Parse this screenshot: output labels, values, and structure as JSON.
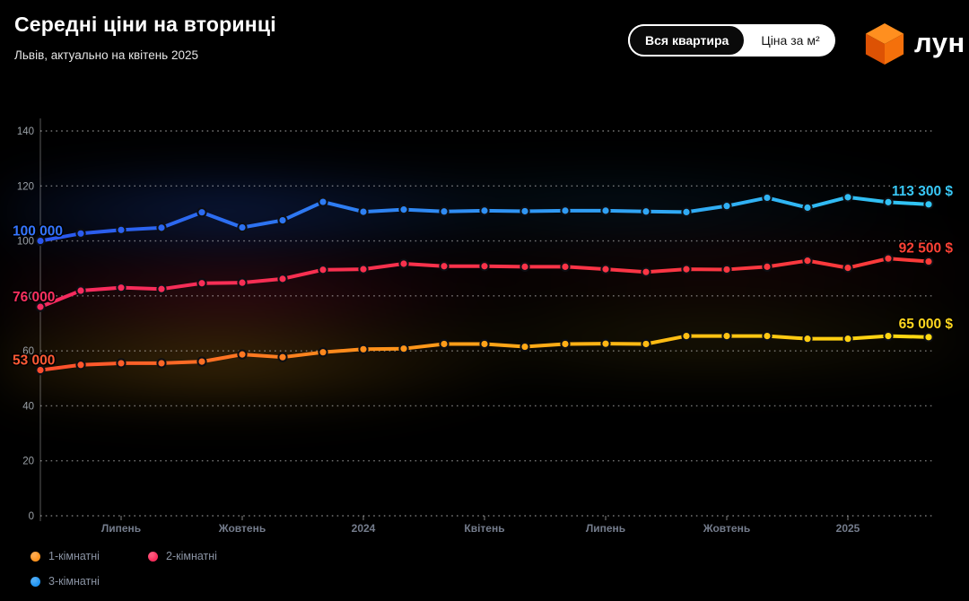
{
  "header": {
    "title": "Середні ціни на вторинці",
    "subtitle": "Львів, актуально на квітень 2025",
    "toggle": {
      "options": [
        {
          "label": "Вся квартира",
          "active": true
        },
        {
          "label": "Ціна за м²",
          "active": false
        }
      ]
    },
    "logo_text": "лун"
  },
  "chart_data": {
    "type": "line",
    "title": "Середні ціни на вторинці",
    "subtitle": "Львів, актуально на квітень 2025",
    "unit": "thousand $",
    "ylim": [
      0,
      140
    ],
    "y_ticks": [
      0,
      20,
      40,
      60,
      80,
      100,
      120,
      140
    ],
    "grid": "dotted horizontal",
    "legend_position": "bottom-left",
    "x_point_count": 23,
    "x_tick_labels": [
      {
        "index": 2,
        "label": "Липень"
      },
      {
        "index": 5,
        "label": "Жовтень"
      },
      {
        "index": 8,
        "label": "2024"
      },
      {
        "index": 11,
        "label": "Квітень"
      },
      {
        "index": 14,
        "label": "Липень"
      },
      {
        "index": 17,
        "label": "Жовтень"
      },
      {
        "index": 20,
        "label": "2025"
      }
    ],
    "series": [
      {
        "name": "1-кімнатні",
        "values": [
          53.0,
          54.9,
          55.5,
          55.5,
          56.1,
          58.7,
          57.7,
          59.5,
          60.6,
          60.8,
          62.5,
          62.5,
          61.5,
          62.5,
          62.6,
          62.5,
          65.4,
          65.4,
          65.4,
          64.4,
          64.4,
          65.4,
          65.0
        ],
        "start_label": "53 000",
        "end_label": "65 000 $",
        "start_label_color": "#ff5a35",
        "end_label_color": "#ffd71f",
        "gradient": [
          "#ff4d2e",
          "#ff8a1c",
          "#ffb913",
          "#ffda12"
        ],
        "legend_color": "#ff9420"
      },
      {
        "name": "2-кімнатні",
        "values": [
          76.0,
          81.9,
          83.0,
          82.5,
          84.6,
          84.8,
          86.2,
          89.5,
          89.7,
          91.7,
          90.8,
          90.8,
          90.6,
          90.6,
          89.7,
          88.7,
          89.7,
          89.6,
          90.6,
          92.8,
          90.2,
          93.6,
          92.5
        ],
        "start_label": "76 000",
        "end_label": "92 500 $",
        "start_label_color": "#fa3160",
        "end_label_color": "#ff4236",
        "gradient": [
          "#f62a60",
          "#f8304f",
          "#fa3545",
          "#fb3b38"
        ],
        "legend_color": "#f92e5c"
      },
      {
        "name": "3-кімнатні",
        "values": [
          100.0,
          102.7,
          104.0,
          104.8,
          110.4,
          104.9,
          107.5,
          114.2,
          110.6,
          111.4,
          110.7,
          111.0,
          110.8,
          111.0,
          111.0,
          110.7,
          110.5,
          112.7,
          115.7,
          112.1,
          115.9,
          114.1,
          113.3
        ],
        "start_label": "100 000",
        "end_label": "113 300 $",
        "start_label_color": "#3575ff",
        "end_label_color": "#39c8f7",
        "gradient": [
          "#2a56ee",
          "#2e7df3",
          "#30a4f4",
          "#31c6f4"
        ],
        "legend_color": "#2196f3"
      }
    ]
  },
  "legend": {
    "items": [
      {
        "label": "1-кімнатні"
      },
      {
        "label": "2-кімнатні"
      },
      {
        "label": "3-кімнатні"
      }
    ]
  }
}
